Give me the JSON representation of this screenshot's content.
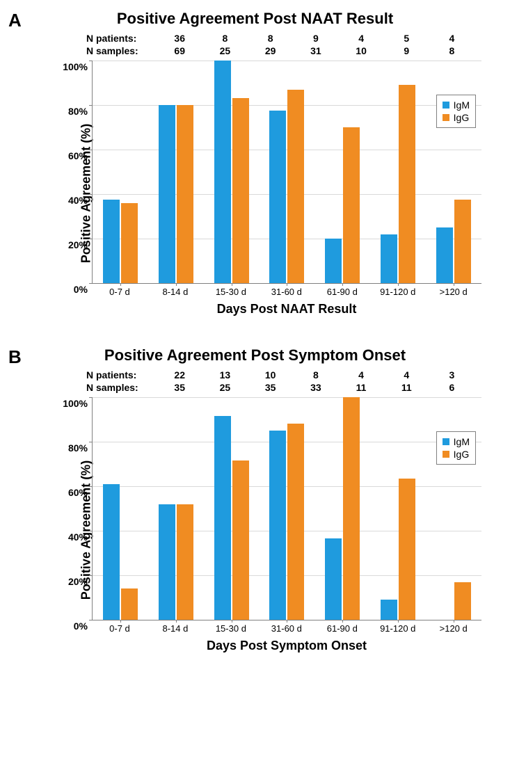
{
  "colors": {
    "igm": "#1f9bde",
    "igg": "#f08c22",
    "grid": "#d9d9d9",
    "axis": "#808080"
  },
  "categories": [
    "0-7 d",
    "8-14 d",
    "15-30 d",
    "31-60 d",
    "61-90 d",
    "91-120 d",
    ">120 d"
  ],
  "y_ticks": [
    0,
    20,
    40,
    60,
    80,
    100
  ],
  "y_tick_labels": [
    "0%",
    "20%",
    "40%",
    "60%",
    "80%",
    "100%"
  ],
  "legend": {
    "igm": "IgM",
    "igg": "IgG"
  },
  "panelA": {
    "letter": "A",
    "title": "Positive Agreement Post NAAT Result",
    "n_patients_label": "N patients:",
    "n_samples_label": "N samples:",
    "n_patients": [
      "36",
      "8",
      "8",
      "9",
      "4",
      "5",
      "4"
    ],
    "n_samples": [
      "69",
      "25",
      "29",
      "31",
      "10",
      "9",
      "8"
    ],
    "ylabel": "Positive Agreement (%)",
    "xlabel": "Days Post NAAT Result",
    "igm": [
      37.5,
      80,
      100,
      77.5,
      20,
      22,
      25
    ],
    "igg": [
      36,
      80,
      83,
      87,
      70,
      89,
      37.5
    ]
  },
  "panelB": {
    "letter": "B",
    "title": "Positive Agreement Post Symptom Onset",
    "n_patients_label": "N patients:",
    "n_samples_label": "N samples:",
    "n_patients": [
      "22",
      "13",
      "10",
      "8",
      "4",
      "4",
      "3"
    ],
    "n_samples": [
      "35",
      "25",
      "35",
      "33",
      "11",
      "11",
      "6"
    ],
    "ylabel": "Positive Agreement (%)",
    "xlabel": "Days Post Symptom Onset",
    "igm": [
      61,
      52,
      91.5,
      85,
      36.5,
      9,
      0
    ],
    "igg": [
      14,
      52,
      71.5,
      88,
      100,
      63.5,
      17
    ]
  }
}
